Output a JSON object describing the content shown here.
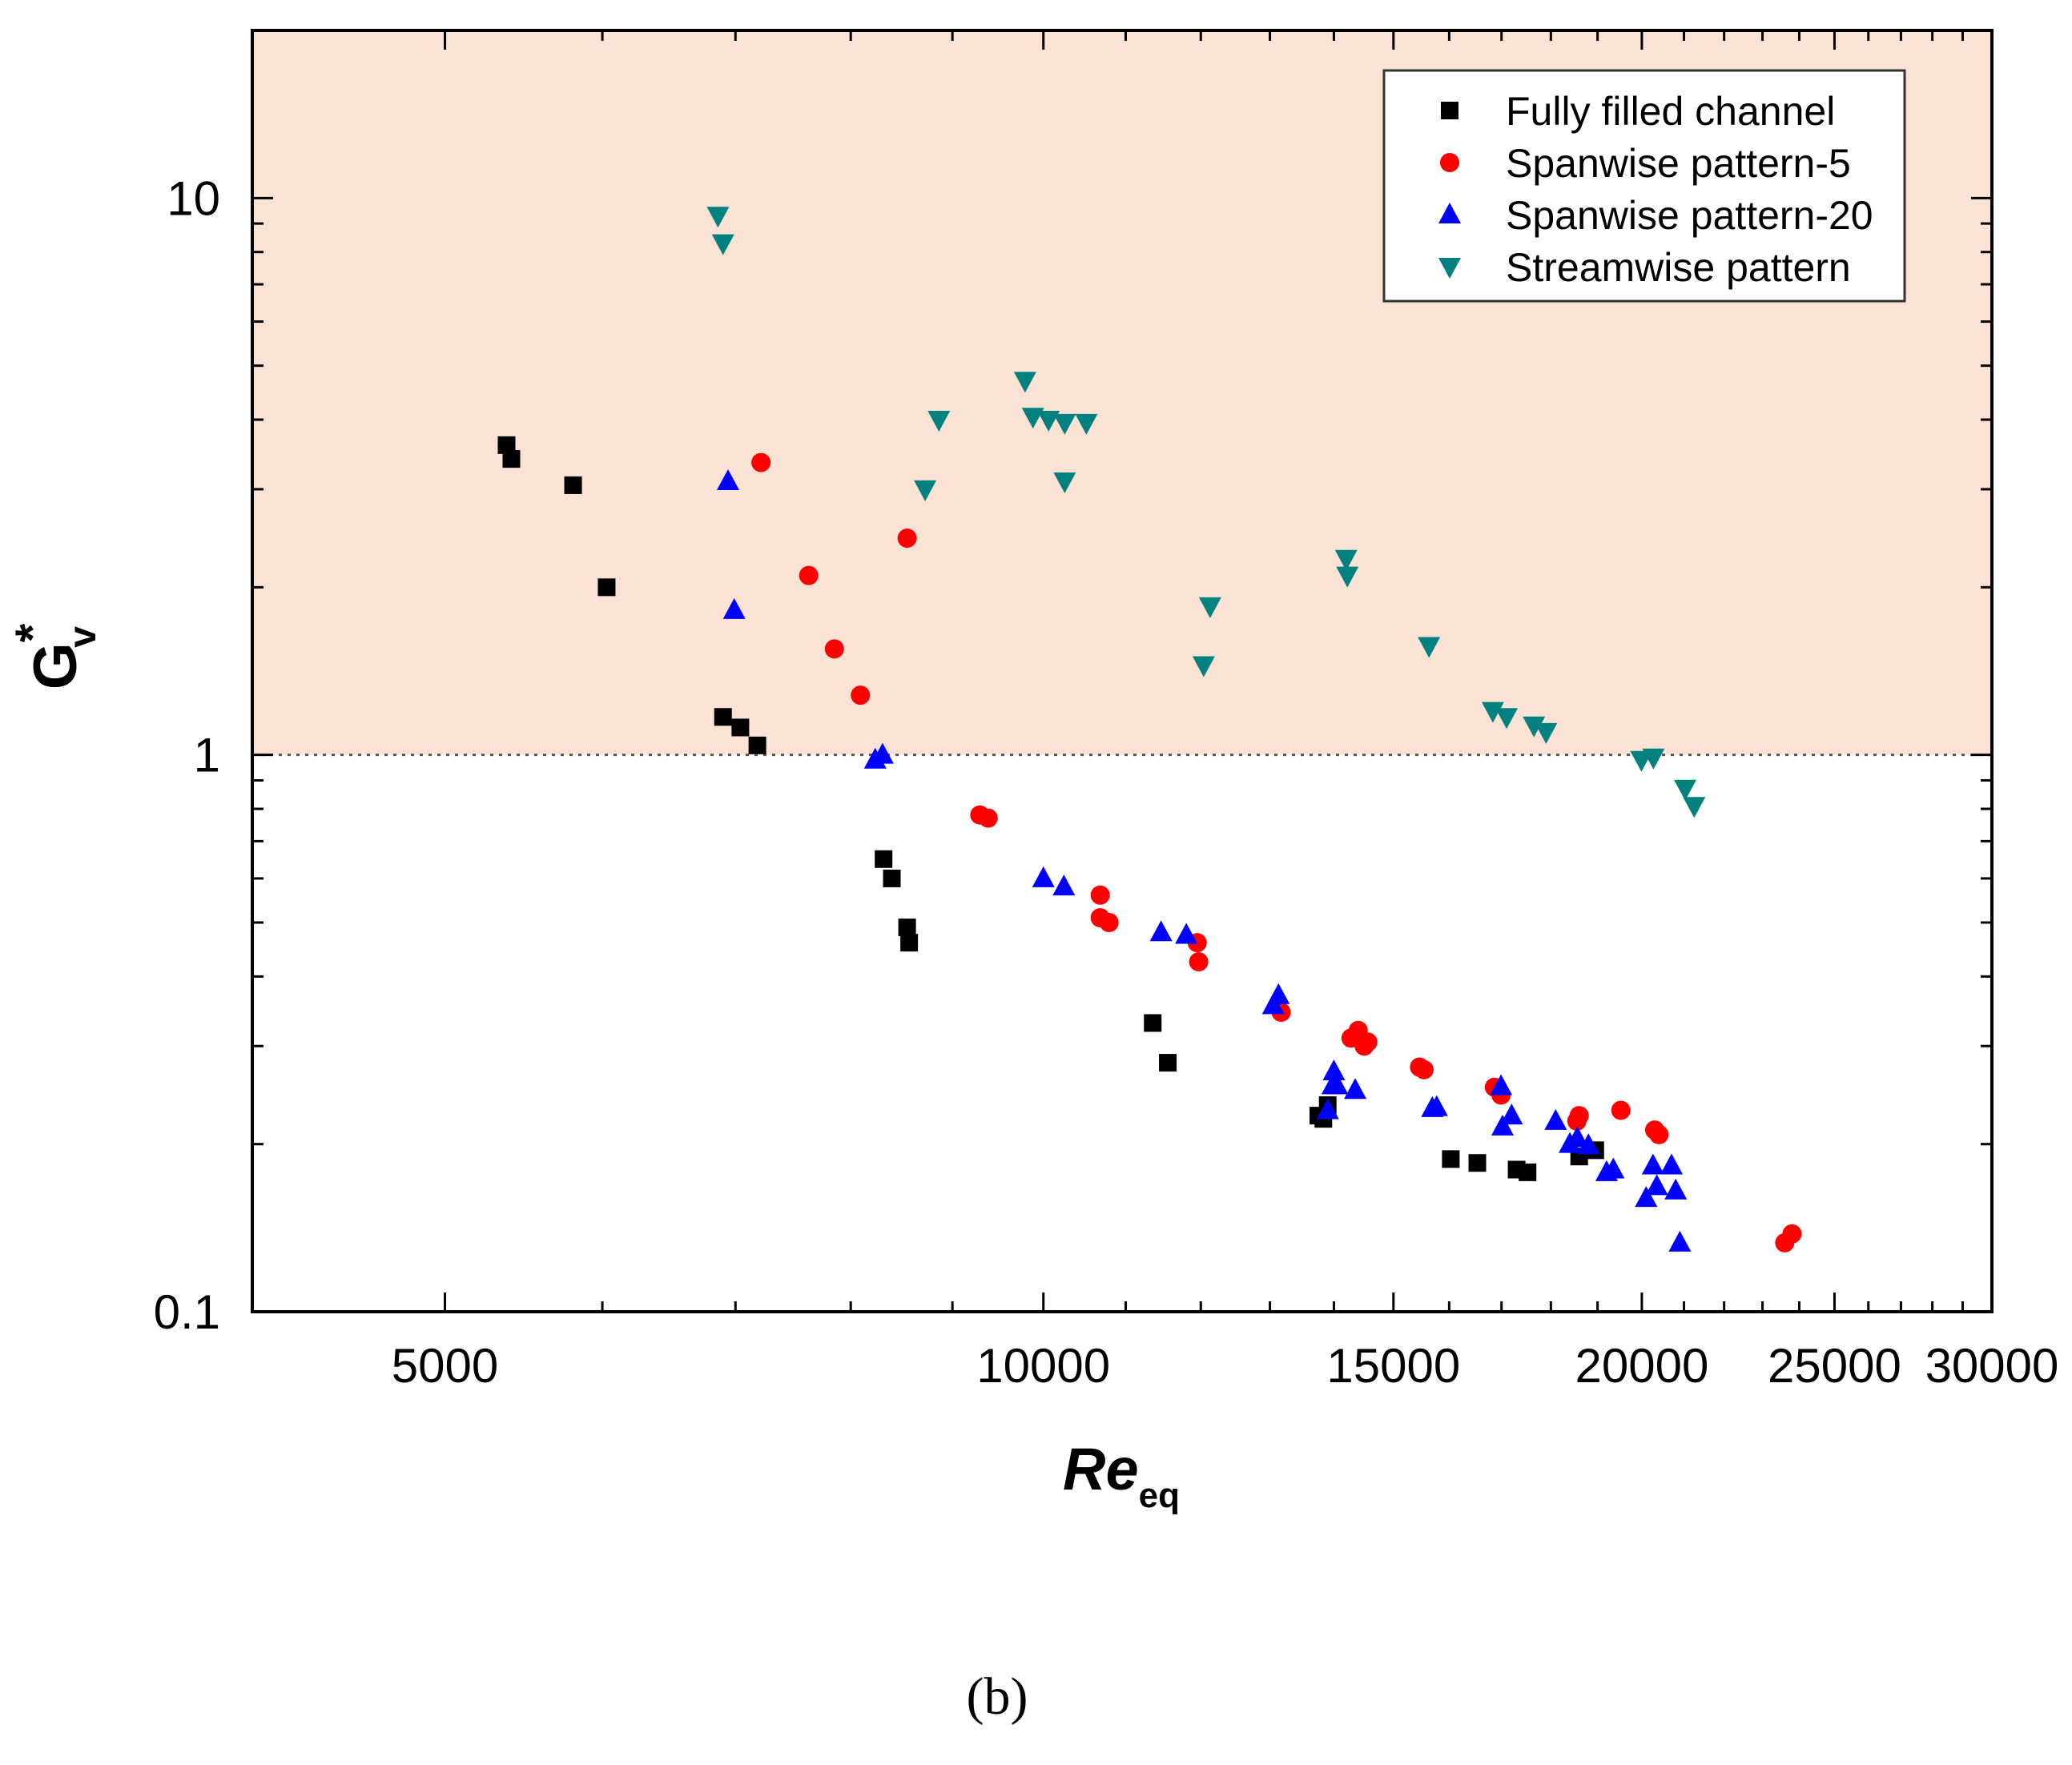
{
  "chart_data": {
    "type": "scatter",
    "title": "",
    "xlabel": "Re",
    "xlabel_sub": "eq",
    "ylabel": "G",
    "ylabel_sup": "*",
    "ylabel_sub": "v",
    "xscale": "log",
    "yscale": "log",
    "xlim": [
      4000,
      30000
    ],
    "ylim": [
      0.1,
      20
    ],
    "x_tick_labels": [
      "5000",
      "10000",
      "15000",
      "20000",
      "25000",
      "30000"
    ],
    "y_tick_labels": [
      "0.1",
      "1",
      "10"
    ],
    "reference_line": {
      "y": 1,
      "style": "dotted"
    },
    "shaded_region": {
      "y_from": 1,
      "y_to": 20,
      "color": "#FAE3D5"
    },
    "legend": {
      "position": "top-right"
    },
    "caption": "(b)",
    "series": [
      {
        "name": "Fully filled channel",
        "marker": "square",
        "color": "#000000",
        "points": [
          [
            5370,
            3.6
          ],
          [
            5400,
            3.4
          ],
          [
            5800,
            3.05
          ],
          [
            6030,
            2.0
          ],
          [
            6900,
            1.17
          ],
          [
            7040,
            1.12
          ],
          [
            7180,
            1.04
          ],
          [
            8310,
            0.65
          ],
          [
            8390,
            0.6
          ],
          [
            8540,
            0.49
          ],
          [
            8560,
            0.46
          ],
          [
            11350,
            0.33
          ],
          [
            11550,
            0.28
          ],
          [
            13750,
            0.225
          ],
          [
            13830,
            0.222
          ],
          [
            13900,
            0.235
          ],
          [
            16030,
            0.188
          ],
          [
            16530,
            0.185
          ],
          [
            17300,
            0.18
          ],
          [
            17520,
            0.178
          ],
          [
            18600,
            0.19
          ],
          [
            18950,
            0.195
          ]
        ]
      },
      {
        "name": "Spanwise pattern-5",
        "marker": "circle",
        "color": "#FF0000",
        "points": [
          [
            7210,
            3.35
          ],
          [
            7620,
            2.1
          ],
          [
            7850,
            1.55
          ],
          [
            8090,
            1.28
          ],
          [
            8540,
            2.45
          ],
          [
            9290,
            0.78
          ],
          [
            9380,
            0.77
          ],
          [
            10680,
            0.56
          ],
          [
            10680,
            0.51
          ],
          [
            10790,
            0.5
          ],
          [
            11950,
            0.46
          ],
          [
            11970,
            0.425
          ],
          [
            13170,
            0.345
          ],
          [
            14280,
            0.31
          ],
          [
            14400,
            0.32
          ],
          [
            14500,
            0.3
          ],
          [
            14560,
            0.305
          ],
          [
            15460,
            0.275
          ],
          [
            15540,
            0.272
          ],
          [
            16860,
            0.253
          ],
          [
            16990,
            0.245
          ],
          [
            18550,
            0.22
          ],
          [
            18600,
            0.225
          ],
          [
            19520,
            0.23
          ],
          [
            20300,
            0.212
          ],
          [
            20400,
            0.208
          ],
          [
            23600,
            0.133
          ],
          [
            23800,
            0.138
          ]
        ]
      },
      {
        "name": "Spanwise pattern-20",
        "marker": "triangle-up",
        "color": "#0000FF",
        "points": [
          [
            6940,
            3.1
          ],
          [
            6990,
            1.82
          ],
          [
            8230,
            0.98
          ],
          [
            8300,
            1.0
          ],
          [
            10000,
            0.6
          ],
          [
            10240,
            0.58
          ],
          [
            11460,
            0.48
          ],
          [
            11800,
            0.475
          ],
          [
            13050,
            0.355
          ],
          [
            13130,
            0.37
          ],
          [
            13900,
            0.23
          ],
          [
            13980,
            0.255
          ],
          [
            14000,
            0.27
          ],
          [
            14050,
            0.255
          ],
          [
            14350,
            0.25
          ],
          [
            15690,
            0.232
          ],
          [
            15770,
            0.233
          ],
          [
            16990,
            0.254
          ],
          [
            17020,
            0.215
          ],
          [
            17200,
            0.225
          ],
          [
            18100,
            0.22
          ],
          [
            18400,
            0.2
          ],
          [
            18560,
            0.205
          ],
          [
            18800,
            0.199
          ],
          [
            19200,
            0.178
          ],
          [
            19350,
            0.18
          ],
          [
            20100,
            0.16
          ],
          [
            20260,
            0.183
          ],
          [
            20350,
            0.168
          ],
          [
            20700,
            0.183
          ],
          [
            20800,
            0.165
          ],
          [
            20900,
            0.133
          ]
        ]
      },
      {
        "name": "Streamwise pattern",
        "marker": "triangle-down",
        "color": "#00807F",
        "points": [
          [
            6860,
            9.3
          ],
          [
            6900,
            8.3
          ],
          [
            8720,
            3.0
          ],
          [
            8860,
            4.0
          ],
          [
            9790,
            4.7
          ],
          [
            9880,
            4.05
          ],
          [
            10060,
            4.0
          ],
          [
            10250,
            3.95
          ],
          [
            10510,
            3.95
          ],
          [
            10250,
            3.1
          ],
          [
            12040,
            1.45
          ],
          [
            12130,
            1.85
          ],
          [
            14200,
            2.25
          ],
          [
            14220,
            2.1
          ],
          [
            15630,
            1.57
          ],
          [
            16830,
            1.2
          ],
          [
            17100,
            1.17
          ],
          [
            17650,
            1.13
          ],
          [
            17900,
            1.1
          ],
          [
            19990,
            0.98
          ],
          [
            20270,
            0.99
          ],
          [
            21030,
            0.87
          ],
          [
            21250,
            0.81
          ]
        ]
      }
    ]
  }
}
